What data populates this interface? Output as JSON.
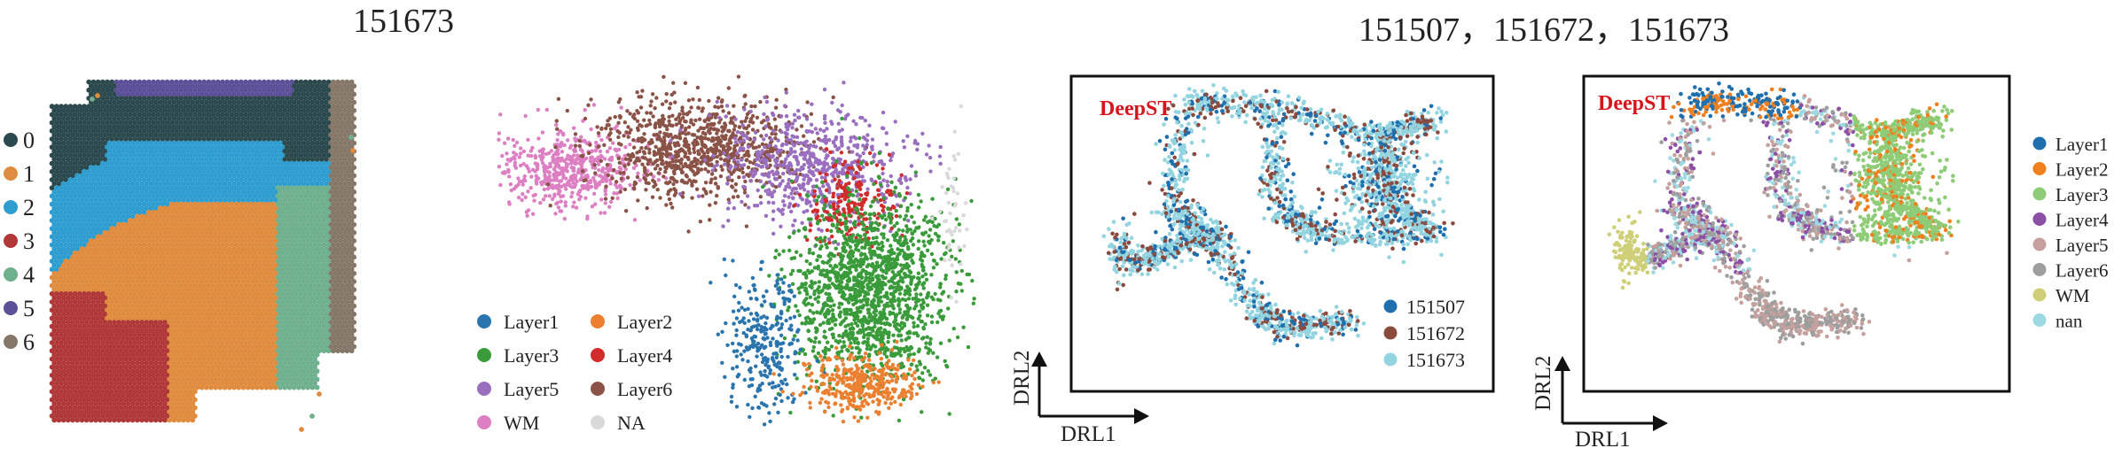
{
  "titles": {
    "left": "151673",
    "right": "151507，151672，151673"
  },
  "colors": {
    "clusters": [
      "#2c4a4d",
      "#e08c3e",
      "#2e9ed1",
      "#b03838",
      "#6fb08f",
      "#5c5099",
      "#857868"
    ],
    "layers": {
      "Layer1": "#2a75ae",
      "Layer2": "#ec8030",
      "Layer3": "#3a9b3a",
      "Layer4": "#d22b2b",
      "Layer5": "#9a6fc0",
      "Layer6": "#8b5347",
      "WM": "#dd7fc3",
      "NA": "#d9d9d9"
    },
    "batches": {
      "151507": "#1f6fae",
      "151672": "#8c4a3e",
      "151673": "#93d4e1"
    },
    "embedding_layers": {
      "Layer1": "#1f6fae",
      "Layer2": "#f07f1e",
      "Layer3": "#8fcc78",
      "Layer4": "#8b4fa6",
      "Layer5": "#c5a09c",
      "Layer6": "#9e9e9e",
      "WM": "#cfcf78",
      "nan": "#9dd9e3"
    },
    "accent_red": "#d8141b"
  },
  "chart_data": [
    {
      "type": "spatial-scatter",
      "panel": "domain-map-151673",
      "legend": [
        "0",
        "1",
        "2",
        "3",
        "4",
        "5",
        "6"
      ],
      "legend_placement": "left"
    },
    {
      "type": "scatter",
      "panel": "umap-151673",
      "legend": [
        "Layer1",
        "Layer2",
        "Layer3",
        "Layer4",
        "Layer5",
        "Layer6",
        "WM",
        "NA"
      ],
      "legend_placement": "bottom-left",
      "groups": [
        {
          "name": "WM",
          "cx": 0.15,
          "cy": 0.28,
          "sx": 0.075,
          "sy": 0.055,
          "n": 520
        },
        {
          "name": "Layer6",
          "cx": 0.42,
          "cy": 0.22,
          "sx": 0.11,
          "sy": 0.07,
          "n": 900
        },
        {
          "name": "Layer5",
          "cx": 0.66,
          "cy": 0.27,
          "sx": 0.1,
          "sy": 0.075,
          "n": 650
        },
        {
          "name": "Layer4",
          "cx": 0.74,
          "cy": 0.38,
          "sx": 0.05,
          "sy": 0.06,
          "n": 200
        },
        {
          "name": "Layer3",
          "cx": 0.78,
          "cy": 0.62,
          "sx": 0.08,
          "sy": 0.13,
          "n": 1500
        },
        {
          "name": "Layer1",
          "cx": 0.56,
          "cy": 0.76,
          "sx": 0.04,
          "sy": 0.11,
          "n": 280
        },
        {
          "name": "Layer2",
          "cx": 0.76,
          "cy": 0.88,
          "sx": 0.06,
          "sy": 0.045,
          "n": 360
        },
        {
          "name": "NA",
          "cx": 0.95,
          "cy": 0.4,
          "sx": 0.015,
          "sy": 0.1,
          "n": 45
        }
      ]
    },
    {
      "type": "scatter",
      "panel": "embedding-batch",
      "label": "DeepST",
      "xlabel": "DRL1",
      "ylabel": "DRL2",
      "legend": [
        "151507",
        "151672",
        "151673"
      ],
      "legend_placement": "bottom-right"
    },
    {
      "type": "scatter",
      "panel": "embedding-layer",
      "label": "DeepST",
      "xlabel": "DRL1",
      "ylabel": "DRL2",
      "legend": [
        "Layer1",
        "Layer2",
        "Layer3",
        "Layer4",
        "Layer5",
        "Layer6",
        "WM",
        "nan"
      ],
      "legend_placement": "right"
    }
  ]
}
